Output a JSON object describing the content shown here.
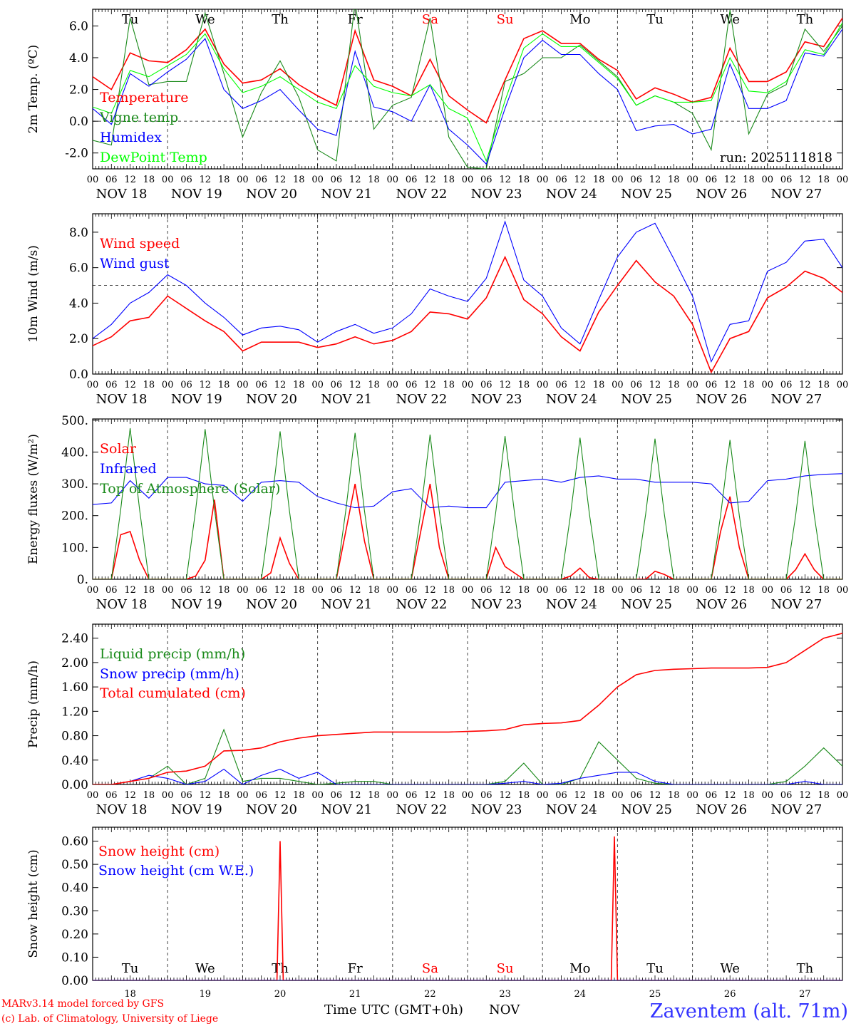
{
  "common": {
    "hour_labels": [
      "00",
      "06",
      "12",
      "18"
    ],
    "date_labels": [
      "NOV 18",
      "NOV 19",
      "NOV 20",
      "NOV 21",
      "NOV 22",
      "NOV 23",
      "NOV 24",
      "NOV 25",
      "NOV 26",
      "NOV 27"
    ],
    "day_numbers": [
      "18",
      "19",
      "20",
      "21",
      "22",
      "23",
      "24",
      "25",
      "26",
      "27"
    ],
    "weekdays": [
      {
        "label": "Tu",
        "color": "#000000"
      },
      {
        "label": "We",
        "color": "#000000"
      },
      {
        "label": "Th",
        "color": "#000000"
      },
      {
        "label": "Fr",
        "color": "#000000"
      },
      {
        "label": "Sa",
        "color": "#ff0000"
      },
      {
        "label": "Su",
        "color": "#ff0000"
      },
      {
        "label": "Mo",
        "color": "#000000"
      },
      {
        "label": "Tu",
        "color": "#000000"
      },
      {
        "label": "We",
        "color": "#000000"
      },
      {
        "label": "Th",
        "color": "#000000"
      }
    ],
    "x_range_hours": [
      0,
      240
    ]
  },
  "footer": {
    "model": "MARv3.14 model forced by GFS",
    "copyright": "(c) Lab. of Climatology, University of Liege",
    "xlabel": "Time UTC (GMT+0h)",
    "month": "NOV",
    "station": "Zaventem (alt. 71m)"
  },
  "chart_data": [
    {
      "type": "line",
      "ylabel": "2m Temp. (ºC)",
      "ylim": [
        -3.0,
        7.05
      ],
      "yticks": [
        6.0,
        4.0,
        2.0,
        0.0,
        -2.0
      ],
      "ytick_labels": [
        "6.0",
        "4.0",
        "2.0",
        "0.0",
        "-2.0"
      ],
      "ref_line": 0,
      "annotation": "run: 2025111818",
      "series": [
        {
          "name": "Temperature",
          "color": "#ff0000",
          "step_hours": 6,
          "values": [
            2.8,
            2.0,
            4.3,
            3.8,
            3.7,
            4.5,
            5.8,
            3.6,
            2.4,
            2.6,
            3.3,
            2.3,
            1.6,
            1.0,
            5.7,
            2.6,
            2.2,
            1.6,
            3.9,
            1.6,
            0.7,
            -0.1,
            2.6,
            5.2,
            5.7,
            4.9,
            4.9,
            3.9,
            3.2,
            1.4,
            2.1,
            1.7,
            1.2,
            1.5,
            4.6,
            2.5,
            2.5,
            3.1,
            5.0,
            4.7,
            6.5
          ]
        },
        {
          "name": "Vigne temp",
          "color": "#1a8a1a",
          "step_hours": 6,
          "values": [
            -1.2,
            -1.5,
            6.5,
            2.3,
            2.5,
            2.5,
            6.8,
            3.0,
            -1.0,
            1.8,
            3.8,
            1.5,
            -1.8,
            -2.5,
            7.5,
            -0.5,
            1.0,
            1.5,
            6.5,
            -1.0,
            -2.9,
            -3.0,
            2.5,
            3.0,
            4.0,
            4.0,
            4.8,
            3.8,
            2.8,
            1.0,
            1.6,
            1.2,
            0.5,
            -1.8,
            7.0,
            -0.8,
            1.7,
            2.3,
            5.8,
            4.4,
            6.0
          ]
        },
        {
          "name": "Humidex",
          "color": "#0000ff",
          "step_hours": 6,
          "values": [
            0.8,
            -0.2,
            3.0,
            2.2,
            3.1,
            3.9,
            5.2,
            2.0,
            0.8,
            1.3,
            2.0,
            0.7,
            -0.5,
            -0.9,
            4.4,
            0.9,
            0.6,
            0.0,
            2.3,
            -0.5,
            -1.5,
            -2.7,
            0.8,
            4.0,
            5.1,
            4.2,
            4.2,
            3.0,
            2.0,
            -0.6,
            -0.3,
            -0.2,
            -0.8,
            -0.5,
            3.6,
            0.8,
            0.8,
            1.3,
            4.3,
            4.1,
            5.8
          ]
        },
        {
          "name": "DewPoint Temp",
          "color": "#00ff00",
          "step_hours": 6,
          "values": [
            0.9,
            0.5,
            3.2,
            2.8,
            3.5,
            4.2,
            5.5,
            3.3,
            1.8,
            2.2,
            2.8,
            2.0,
            1.2,
            0.8,
            3.5,
            2.2,
            1.8,
            1.6,
            2.3,
            0.8,
            0.2,
            -2.5,
            1.3,
            4.6,
            5.5,
            4.7,
            4.7,
            3.7,
            2.7,
            1.0,
            1.6,
            1.2,
            1.2,
            1.3,
            4.0,
            1.9,
            1.8,
            2.5,
            4.5,
            4.2,
            6.2
          ]
        }
      ]
    },
    {
      "type": "line",
      "ylabel": "10m Wind (m/s)",
      "ylim": [
        0,
        9.04
      ],
      "yticks": [
        8.0,
        6.0,
        4.0,
        2.0,
        0.0
      ],
      "ytick_labels": [
        "8.0",
        "6.0",
        "4.0",
        "2.0",
        "0.0"
      ],
      "ref_line": 5,
      "series": [
        {
          "name": "Wind speed",
          "color": "#ff0000",
          "step_hours": 6,
          "values": [
            1.6,
            2.1,
            3.0,
            3.2,
            4.4,
            3.7,
            3.0,
            2.4,
            1.3,
            1.8,
            1.8,
            1.8,
            1.5,
            1.7,
            2.1,
            1.7,
            1.9,
            2.4,
            3.5,
            3.4,
            3.1,
            4.3,
            6.6,
            4.2,
            3.4,
            2.1,
            1.3,
            3.5,
            5.0,
            6.4,
            5.2,
            4.4,
            2.8,
            0.1,
            2.0,
            2.4,
            4.3,
            4.9,
            5.8,
            5.4,
            4.6
          ]
        },
        {
          "name": "Wind gust",
          "color": "#0000ff",
          "step_hours": 6,
          "values": [
            2.0,
            2.8,
            4.0,
            4.6,
            5.6,
            5.0,
            4.0,
            3.2,
            2.2,
            2.6,
            2.7,
            2.5,
            1.8,
            2.4,
            2.8,
            2.3,
            2.6,
            3.4,
            4.8,
            4.4,
            4.1,
            5.4,
            8.6,
            5.3,
            4.4,
            2.6,
            1.7,
            4.2,
            6.6,
            8.0,
            8.5,
            6.5,
            4.4,
            0.7,
            2.8,
            3.0,
            5.8,
            6.3,
            7.5,
            7.6,
            6.0
          ]
        }
      ]
    },
    {
      "type": "line",
      "ylabel": "Energy fluxes (W/m²)",
      "ylim": [
        0,
        504
      ],
      "yticks": [
        500,
        400,
        300,
        200,
        100,
        0
      ],
      "ytick_labels": [
        "500.",
        "400.",
        "300.",
        "200.",
        "100.",
        "0."
      ],
      "series": [
        {
          "name": "Solar",
          "color": "#ff0000",
          "step_hours": 3,
          "values": [
            0,
            0,
            0,
            140,
            150,
            60,
            0,
            0,
            0,
            0,
            0,
            10,
            60,
            250,
            0,
            0,
            0,
            0,
            0,
            20,
            130,
            50,
            0,
            0,
            0,
            0,
            0,
            150,
            300,
            120,
            0,
            0,
            0,
            0,
            0,
            150,
            300,
            100,
            0,
            0,
            0,
            0,
            0,
            100,
            40,
            20,
            0,
            0,
            0,
            0,
            0,
            10,
            35,
            5,
            0,
            0,
            0,
            0,
            0,
            0,
            25,
            15,
            0,
            0,
            0,
            0,
            0,
            150,
            260,
            100,
            0,
            0,
            0,
            0,
            0,
            30,
            80,
            30,
            0,
            0,
            0
          ]
        },
        {
          "name": "Infrared",
          "color": "#0000ff",
          "step_hours": 6,
          "values": [
            235,
            240,
            310,
            255,
            320,
            320,
            300,
            295,
            245,
            305,
            310,
            305,
            260,
            240,
            225,
            230,
            275,
            285,
            225,
            230,
            225,
            225,
            305,
            310,
            315,
            305,
            320,
            325,
            315,
            315,
            305,
            305,
            305,
            300,
            240,
            245,
            310,
            315,
            325,
            330,
            332
          ]
        },
        {
          "name": "Top of Atmosphere (Solar)",
          "color": "#1a8a1a",
          "step_hours": 3,
          "values": [
            0,
            0,
            0,
            220,
            475,
            220,
            0,
            0,
            0,
            0,
            0,
            220,
            472,
            220,
            0,
            0,
            0,
            0,
            0,
            215,
            465,
            215,
            0,
            0,
            0,
            0,
            0,
            215,
            460,
            215,
            0,
            0,
            0,
            0,
            0,
            210,
            455,
            210,
            0,
            0,
            0,
            0,
            0,
            210,
            450,
            210,
            0,
            0,
            0,
            0,
            0,
            205,
            445,
            205,
            0,
            0,
            0,
            0,
            0,
            205,
            442,
            205,
            0,
            0,
            0,
            0,
            0,
            200,
            438,
            200,
            0,
            0,
            0,
            0,
            0,
            200,
            435,
            200,
            0,
            0,
            0
          ]
        }
      ]
    },
    {
      "type": "line",
      "ylabel": "Precip (mm/h)",
      "ylim": [
        0,
        2.63
      ],
      "yticks": [
        2.4,
        2.0,
        1.6,
        1.2,
        0.8,
        0.4,
        0.0
      ],
      "ytick_labels": [
        "2.40",
        "2.00",
        "1.60",
        "1.20",
        "0.80",
        "0.40",
        "0.00"
      ],
      "series": [
        {
          "name": "Liquid precip (mm/h)",
          "color": "#1a8a1a",
          "step_hours": 6,
          "values": [
            0,
            0,
            0.05,
            0.1,
            0.3,
            0,
            0.1,
            0.9,
            0.05,
            0.1,
            0.1,
            0.05,
            0,
            0.02,
            0.05,
            0.05,
            0,
            0,
            0,
            0,
            0,
            0,
            0.05,
            0.35,
            0,
            0,
            0.1,
            0.7,
            0.4,
            0.1,
            0.02,
            0,
            0,
            0,
            0,
            0,
            0,
            0.05,
            0.3,
            0.6,
            0.3
          ]
        },
        {
          "name": "Snow precip (mm/h)",
          "color": "#0000ff",
          "step_hours": 6,
          "values": [
            0,
            0,
            0.05,
            0.15,
            0.1,
            0,
            0.05,
            0.25,
            0,
            0.15,
            0.25,
            0.1,
            0.2,
            0,
            0,
            0,
            0,
            0,
            0,
            0,
            0,
            0,
            0.02,
            0.05,
            0,
            0.02,
            0.1,
            0.15,
            0.2,
            0.2,
            0.05,
            0,
            0,
            0,
            0,
            0,
            0,
            0,
            0.05,
            0,
            0
          ]
        },
        {
          "name": "Total cumulated (cm)",
          "color": "#ff0000",
          "step_hours": 6,
          "values": [
            0,
            0,
            0.05,
            0.1,
            0.2,
            0.22,
            0.3,
            0.55,
            0.56,
            0.6,
            0.7,
            0.76,
            0.8,
            0.82,
            0.84,
            0.86,
            0.86,
            0.86,
            0.86,
            0.86,
            0.87,
            0.88,
            0.9,
            0.98,
            1.0,
            1.01,
            1.05,
            1.3,
            1.6,
            1.8,
            1.87,
            1.89,
            1.9,
            1.91,
            1.91,
            1.91,
            1.92,
            2.0,
            2.2,
            2.4,
            2.48
          ]
        }
      ]
    },
    {
      "type": "line",
      "ylabel": "Snow height (cm)",
      "ylim": [
        0,
        0.66
      ],
      "yticks": [
        0.6,
        0.5,
        0.4,
        0.3,
        0.2,
        0.1,
        0.0
      ],
      "ytick_labels": [
        "0.60",
        "0.50",
        "0.40",
        "0.30",
        "0.20",
        "0.10",
        "0.00"
      ],
      "series": [
        {
          "name": "Snow height (cm)",
          "color": "#ff0000",
          "x_hours": [
            0,
            59,
            60,
            61,
            166,
            167,
            168,
            240
          ],
          "values": [
            0,
            0,
            0.6,
            0,
            0,
            0.62,
            0,
            0
          ]
        },
        {
          "name": "Snow height (cm W.E.)",
          "color": "#0000ff",
          "x_hours": [
            0,
            240
          ],
          "values": [
            0,
            0
          ]
        }
      ]
    }
  ]
}
